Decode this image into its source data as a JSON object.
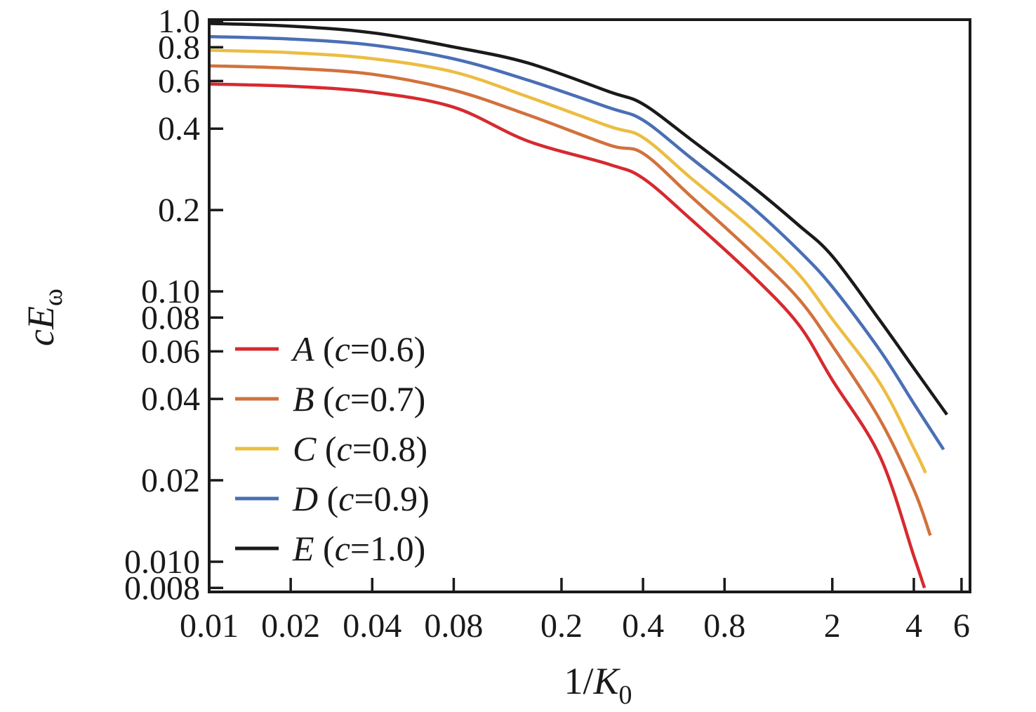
{
  "figure": {
    "background": "#ffffff",
    "frame_color": "#1a1a1a"
  },
  "chart_data": {
    "type": "line",
    "title": "",
    "x_scale": "log",
    "y_scale": "log",
    "xlabel": {
      "text": "1/K0",
      "main": "1/",
      "var": "K",
      "sub": "0"
    },
    "ylabel": {
      "text": "cEω",
      "main": "cE",
      "sub": "ω"
    },
    "xlim": [
      0.01,
      6.45
    ],
    "ylim": [
      0.00773,
      1.012
    ],
    "grid": false,
    "legend_position": "lower-left",
    "x_ticks": [
      {
        "v": 0.01,
        "label": "0.01"
      },
      {
        "v": 0.02,
        "label": "0.02"
      },
      {
        "v": 0.04,
        "label": "0.04"
      },
      {
        "v": 0.08,
        "label": "0.08"
      },
      {
        "v": 0.2,
        "label": "0.2"
      },
      {
        "v": 0.4,
        "label": "0.4"
      },
      {
        "v": 0.8,
        "label": "0.8"
      },
      {
        "v": 2,
        "label": "2"
      },
      {
        "v": 4,
        "label": "4"
      },
      {
        "v": 6,
        "label": "6"
      }
    ],
    "y_ticks": [
      {
        "v": 1.0,
        "label": "1.0"
      },
      {
        "v": 0.8,
        "label": "0.8"
      },
      {
        "v": 0.6,
        "label": "0.6"
      },
      {
        "v": 0.4,
        "label": "0.4"
      },
      {
        "v": 0.2,
        "label": "0.2"
      },
      {
        "v": 0.1,
        "label": "0.10"
      },
      {
        "v": 0.08,
        "label": "0.08"
      },
      {
        "v": 0.06,
        "label": "0.06"
      },
      {
        "v": 0.04,
        "label": "0.04"
      },
      {
        "v": 0.02,
        "label": "0.02"
      },
      {
        "v": 0.01,
        "label": "0.010"
      },
      {
        "v": 0.008,
        "label": "0.008"
      }
    ],
    "series": [
      {
        "name": "A",
        "c": "0.6",
        "label": "A (c=0.6)",
        "color": "#d62a2f",
        "points": [
          [
            0.01,
            0.585
          ],
          [
            0.02,
            0.574
          ],
          [
            0.04,
            0.546
          ],
          [
            0.08,
            0.48
          ],
          [
            0.15,
            0.36
          ],
          [
            0.3,
            0.295
          ],
          [
            0.4,
            0.262
          ],
          [
            0.6,
            0.185
          ],
          [
            1.0,
            0.116
          ],
          [
            1.5,
            0.0755
          ],
          [
            2.0,
            0.047
          ],
          [
            3.0,
            0.0245
          ],
          [
            4.0,
            0.0105
          ],
          [
            4.38,
            0.008
          ]
        ]
      },
      {
        "name": "B",
        "c": "0.7",
        "label": "B (c=0.7)",
        "color": "#d2713c",
        "points": [
          [
            0.01,
            0.683
          ],
          [
            0.02,
            0.669
          ],
          [
            0.04,
            0.636
          ],
          [
            0.08,
            0.555
          ],
          [
            0.15,
            0.45
          ],
          [
            0.3,
            0.348
          ],
          [
            0.4,
            0.324
          ],
          [
            0.6,
            0.225
          ],
          [
            1.0,
            0.141
          ],
          [
            1.5,
            0.094
          ],
          [
            2.0,
            0.063
          ],
          [
            3.0,
            0.0335
          ],
          [
            4.0,
            0.0185
          ],
          [
            4.6,
            0.0125
          ]
        ]
      },
      {
        "name": "C",
        "c": "0.8",
        "label": "C (c=0.8)",
        "color": "#ecbd42",
        "points": [
          [
            0.01,
            0.78
          ],
          [
            0.02,
            0.764
          ],
          [
            0.04,
            0.726
          ],
          [
            0.08,
            0.648
          ],
          [
            0.15,
            0.525
          ],
          [
            0.3,
            0.408
          ],
          [
            0.4,
            0.371
          ],
          [
            0.6,
            0.263
          ],
          [
            1.0,
            0.172
          ],
          [
            1.5,
            0.116
          ],
          [
            2.0,
            0.079
          ],
          [
            3.0,
            0.0457
          ],
          [
            4.0,
            0.0263
          ],
          [
            4.42,
            0.0213
          ]
        ]
      },
      {
        "name": "D",
        "c": "0.9",
        "label": "D (c=0.9)",
        "color": "#4a6fb5",
        "points": [
          [
            0.01,
            0.876
          ],
          [
            0.02,
            0.858
          ],
          [
            0.04,
            0.815
          ],
          [
            0.08,
            0.725
          ],
          [
            0.15,
            0.605
          ],
          [
            0.3,
            0.478
          ],
          [
            0.4,
            0.43
          ],
          [
            0.6,
            0.312
          ],
          [
            1.0,
            0.207
          ],
          [
            1.5,
            0.142
          ],
          [
            2.0,
            0.104
          ],
          [
            3.0,
            0.0605
          ],
          [
            4.0,
            0.0385
          ],
          [
            5.15,
            0.026
          ]
        ]
      },
      {
        "name": "E",
        "c": "1.0",
        "label": "E (c=1.0)",
        "color": "#1a1a1a",
        "points": [
          [
            0.01,
            0.98
          ],
          [
            0.02,
            0.958
          ],
          [
            0.04,
            0.905
          ],
          [
            0.08,
            0.802
          ],
          [
            0.15,
            0.7
          ],
          [
            0.3,
            0.548
          ],
          [
            0.4,
            0.493
          ],
          [
            0.6,
            0.365
          ],
          [
            1.0,
            0.247
          ],
          [
            1.5,
            0.176
          ],
          [
            2.0,
            0.135
          ],
          [
            3.0,
            0.078
          ],
          [
            4.0,
            0.052
          ],
          [
            5.3,
            0.035
          ]
        ]
      }
    ]
  }
}
